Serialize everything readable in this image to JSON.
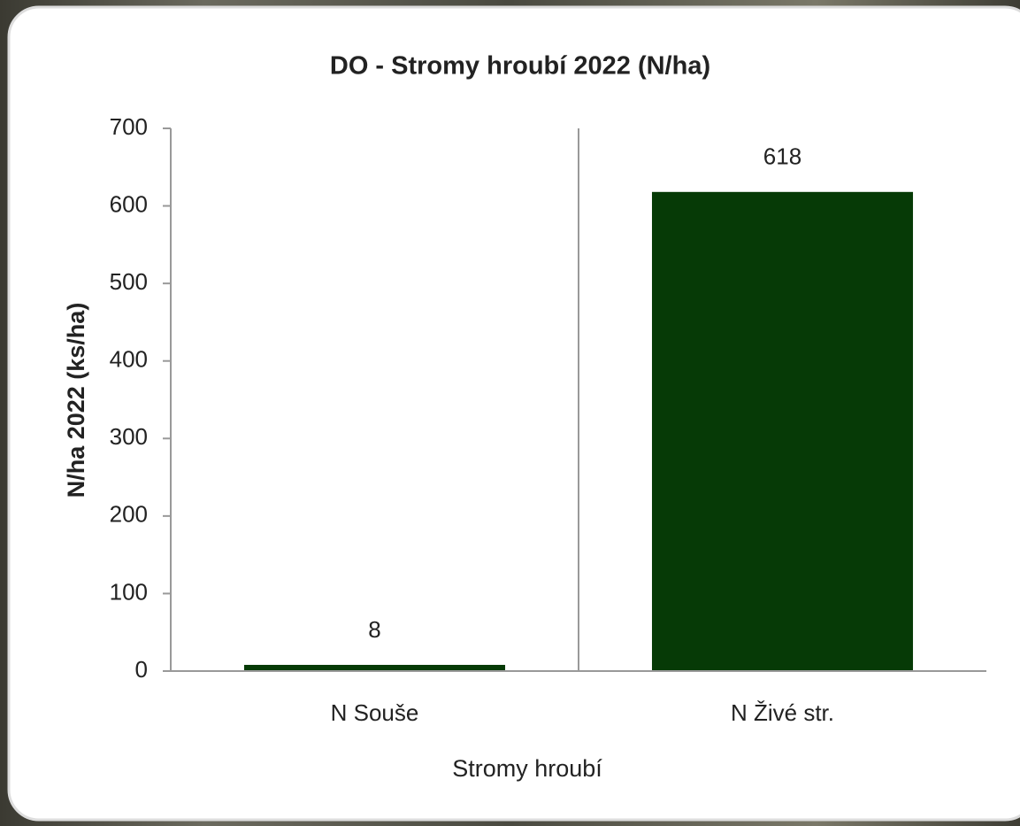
{
  "chart_data": {
    "type": "bar",
    "title": "DO - Stromy hroubí  2022 (N/ha)",
    "x_label": "Stromy hroubí",
    "y_label": "N/ha 2022 (ks/ha)",
    "categories": [
      "N Souše",
      "N Živé str."
    ],
    "values": [
      8,
      618
    ],
    "color": "#063a06",
    "ylim": [
      0,
      700
    ],
    "yticks": [
      0,
      100,
      200,
      300,
      400,
      500,
      600,
      700
    ],
    "grid": false
  }
}
